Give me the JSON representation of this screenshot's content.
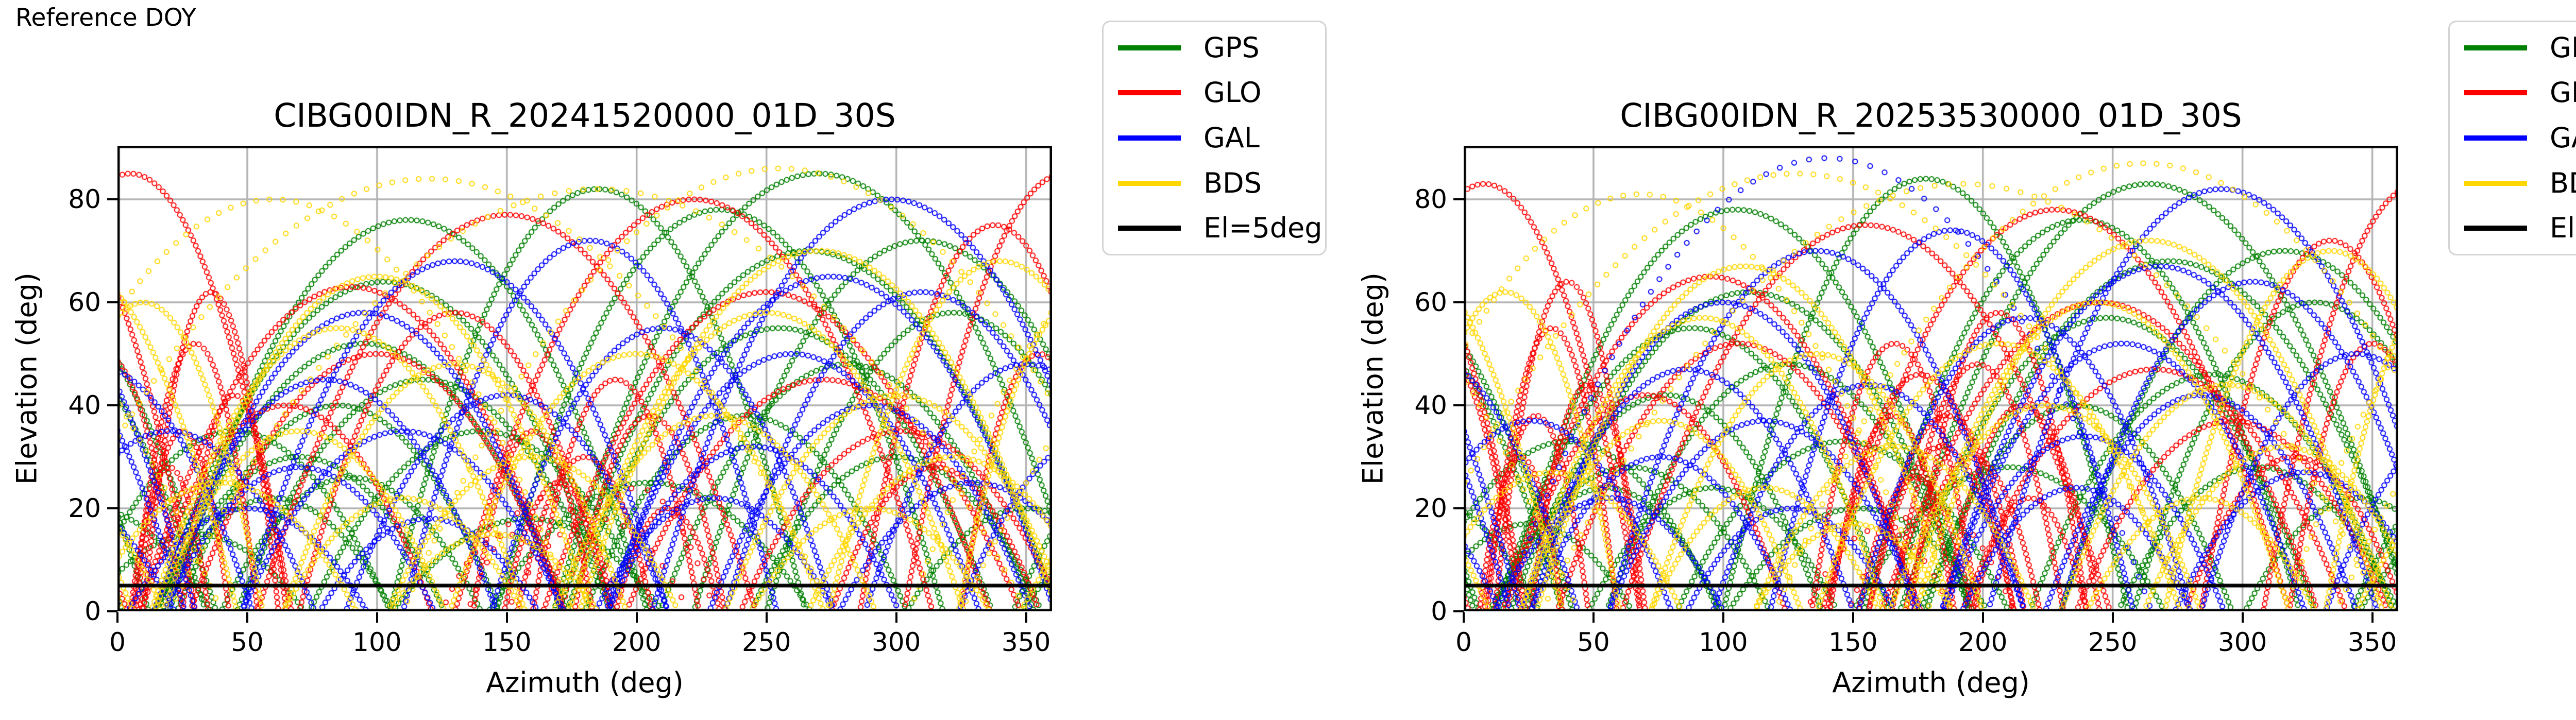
{
  "header": {
    "reference_label": "Reference DOY"
  },
  "figure": {
    "background": "#ffffff",
    "grid_color": "#b3b3b3",
    "frame_color": "#000000",
    "legend_border_color": "#d4d4d4"
  },
  "legend": {
    "entries": [
      {
        "label": "GPS",
        "color": "#008000"
      },
      {
        "label": "GLO",
        "color": "#ff0000"
      },
      {
        "label": "GAL",
        "color": "#0000ff"
      },
      {
        "label": "BDS",
        "color": "#ffd700"
      },
      {
        "label": "El=5deg",
        "color": "#000000"
      }
    ]
  },
  "chart_data": [
    {
      "type": "scatter",
      "title": "CIBG00IDN_R_20241520000_01D_30S",
      "xlabel": "Azimuth (deg)",
      "ylabel": "Elevation (deg)",
      "xlim": [
        0,
        360
      ],
      "ylim": [
        0,
        90.4
      ],
      "xticks": [
        0,
        50,
        100,
        150,
        200,
        250,
        300,
        350
      ],
      "yticks": [
        0,
        20,
        40,
        60,
        80
      ],
      "grid": true,
      "elevation_cutoff": {
        "label": "El=5deg",
        "value": 5,
        "color": "#000000"
      },
      "series": [
        {
          "name": "GPS",
          "color": "#008000",
          "arcs": [
            [
              95,
              78,
              52
            ],
            [
              103,
              88,
              64
            ],
            [
              85,
              62,
              40
            ],
            [
              70,
              56,
              30
            ],
            [
              118,
              72,
              45
            ],
            [
              60,
              46,
              22
            ],
            [
              112,
              92,
              76
            ],
            [
              140,
              66,
              35
            ],
            [
              158,
              52,
              18
            ],
            [
              30,
              42,
              15
            ],
            [
              205,
              62,
              25
            ],
            [
              232,
              86,
              78
            ],
            [
              255,
              82,
              55
            ],
            [
              266,
              96,
              70
            ],
            [
              281,
              72,
              48
            ],
            [
              242,
              62,
              38
            ],
            [
              300,
              56,
              30
            ],
            [
              322,
              72,
              58
            ],
            [
              350,
              46,
              20
            ],
            [
              270,
              102,
              85
            ],
            [
              45,
              60,
              35
            ],
            [
              185,
              80,
              82
            ],
            [
              90,
              50,
              26
            ],
            [
              310,
              88,
              72
            ]
          ]
        },
        {
          "name": "GLO",
          "color": "#ff0000",
          "arcs": [
            [
              25,
              18,
              35
            ],
            [
              30,
              24,
              52
            ],
            [
              20,
              15,
              28
            ],
            [
              36,
              26,
              62
            ],
            [
              45,
              20,
              42
            ],
            [
              180,
              26,
              30
            ],
            [
              192,
              32,
              45
            ],
            [
              170,
              21,
              25
            ],
            [
              205,
              29,
              38
            ],
            [
              212,
              20,
              20
            ],
            [
              160,
              23,
              35
            ],
            [
              90,
              82,
              63
            ],
            [
              100,
              72,
              50
            ],
            [
              250,
              86,
              62
            ],
            [
              272,
              76,
              45
            ],
            [
              302,
              62,
              35
            ],
            [
              338,
              52,
              75
            ],
            [
              5,
              62,
              85
            ],
            [
              222,
              92,
              80
            ],
            [
              150,
              96,
              77
            ],
            [
              65,
              56,
              40
            ],
            [
              355,
              30,
              50
            ],
            [
              315,
              40,
              28
            ],
            [
              165,
              30,
              22,
              30
            ],
            [
              185,
              35,
              18,
              34
            ],
            [
              150,
              25,
              15,
              30
            ],
            [
              200,
              30,
              24,
              32
            ],
            [
              130,
              60,
              58
            ]
          ]
        },
        {
          "name": "GAL",
          "color": "#0000ff",
          "arcs": [
            [
              80,
              66,
              45
            ],
            [
              95,
              76,
              58
            ],
            [
              110,
              62,
              35
            ],
            [
              70,
              52,
              28
            ],
            [
              130,
              82,
              68
            ],
            [
              50,
              46,
              20
            ],
            [
              260,
              72,
              50
            ],
            [
              275,
              86,
              65
            ],
            [
              290,
              62,
              40
            ],
            [
              245,
              56,
              32
            ],
            [
              310,
              76,
              62
            ],
            [
              330,
              52,
              25
            ],
            [
              182,
              72,
              72
            ],
            [
              210,
              66,
              55
            ],
            [
              150,
              62,
              42
            ],
            [
              20,
              56,
              35
            ],
            [
              350,
              62,
              48
            ],
            [
              230,
              46,
              22
            ],
            [
              120,
              42,
              18
            ],
            [
              298,
              92,
              80
            ]
          ]
        },
        {
          "name": "BDS",
          "color": "#ffd700",
          "arcs": [
            [
              120,
              155,
              84,
              26
            ],
            [
              255,
              145,
              86,
              26
            ],
            [
              185,
              165,
              82,
              28
            ],
            [
              60,
              115,
              80,
              26
            ],
            [
              85,
              72,
              55
            ],
            [
              100,
              82,
              65
            ],
            [
              70,
              56,
              35
            ],
            [
              130,
              66,
              48
            ],
            [
              250,
              76,
              58
            ],
            [
              270,
              92,
              70
            ],
            [
              300,
              66,
              42
            ],
            [
              322,
              56,
              30
            ],
            [
              230,
              62,
              38
            ],
            [
              40,
              52,
              25
            ],
            [
              200,
              72,
              50
            ],
            [
              160,
              56,
              30
            ],
            [
              10,
              46,
              60
            ],
            [
              340,
              66,
              68
            ],
            [
              110,
              46,
              22
            ],
            [
              290,
              46,
              20
            ],
            [
              145,
              40,
              15
            ]
          ]
        }
      ]
    },
    {
      "type": "scatter",
      "title": "CIBG00IDN_R_20253530000_01D_30S",
      "xlabel": "Azimuth (deg)",
      "ylabel": "Elevation (deg)",
      "xlim": [
        0,
        360
      ],
      "ylim": [
        0,
        90.4
      ],
      "xticks": [
        0,
        50,
        100,
        150,
        200,
        250,
        300,
        350
      ],
      "yticks": [
        0,
        20,
        40,
        60,
        80
      ],
      "grid": true,
      "elevation_cutoff": {
        "label": "El=5deg",
        "value": 5,
        "color": "#000000"
      },
      "series": [
        {
          "name": "GPS",
          "color": "#008000",
          "arcs": [
            [
              88,
              76,
              55
            ],
            [
              110,
              86,
              62
            ],
            [
              78,
              60,
              42
            ],
            [
              64,
              54,
              28
            ],
            [
              125,
              70,
              48
            ],
            [
              55,
              44,
              24
            ],
            [
              105,
              90,
              78
            ],
            [
              146,
              64,
              33
            ],
            [
              152,
              50,
              20
            ],
            [
              25,
              40,
              17
            ],
            [
              210,
              60,
              28
            ],
            [
              238,
              84,
              76
            ],
            [
              248,
              80,
              57
            ],
            [
              272,
              94,
              68
            ],
            [
              288,
              70,
              46
            ],
            [
              236,
              60,
              40
            ],
            [
              306,
              54,
              28
            ],
            [
              328,
              70,
              60
            ],
            [
              345,
              44,
              22
            ],
            [
              264,
              100,
              83
            ],
            [
              40,
              58,
              33
            ],
            [
              178,
              78,
              84
            ],
            [
              96,
              48,
              24
            ],
            [
              316,
              86,
              70
            ]
          ]
        },
        {
          "name": "GLO",
          "color": "#ff0000",
          "arcs": [
            [
              28,
              20,
              38
            ],
            [
              34,
              25,
              55
            ],
            [
              22,
              16,
              30
            ],
            [
              40,
              28,
              64
            ],
            [
              48,
              22,
              44
            ],
            [
              184,
              28,
              32
            ],
            [
              198,
              33,
              48
            ],
            [
              174,
              22,
              26
            ],
            [
              215,
              30,
              40
            ],
            [
              218,
              22,
              22
            ],
            [
              165,
              24,
              38
            ],
            [
              95,
              80,
              65
            ],
            [
              106,
              70,
              52
            ],
            [
              245,
              84,
              60
            ],
            [
              266,
              74,
              47
            ],
            [
              296,
              60,
              37
            ],
            [
              334,
              50,
              72
            ],
            [
              8,
              60,
              83
            ],
            [
              228,
              90,
              78
            ],
            [
              155,
              94,
              75
            ],
            [
              70,
              54,
              42
            ],
            [
              350,
              32,
              52
            ],
            [
              320,
              42,
              30
            ],
            [
              176,
              36,
              46
            ],
            [
              186,
              30,
              38
            ],
            [
              166,
              32,
              52
            ],
            [
              196,
              26,
              30
            ],
            [
              206,
              34,
              58
            ],
            [
              180,
              32,
              20,
              30
            ],
            [
              160,
              28,
              16,
              32
            ]
          ]
        },
        {
          "name": "GAL",
          "color": "#0000ff",
          "arcs": [
            [
              86,
              64,
              47
            ],
            [
              100,
              74,
              60
            ],
            [
              116,
              60,
              37
            ],
            [
              76,
              50,
              30
            ],
            [
              136,
              80,
              70
            ],
            [
              56,
              44,
              22
            ],
            [
              254,
              70,
              52
            ],
            [
              268,
              84,
              67
            ],
            [
              284,
              60,
              42
            ],
            [
              239,
              54,
              34
            ],
            [
              304,
              74,
              64
            ],
            [
              324,
              50,
              27
            ],
            [
              188,
              70,
              74
            ],
            [
              216,
              64,
              57
            ],
            [
              156,
              60,
              44
            ],
            [
              26,
              54,
              37
            ],
            [
              344,
              60,
              50
            ],
            [
              236,
              44,
              24
            ],
            [
              126,
              40,
              20
            ],
            [
              292,
              90,
              82
            ],
            [
              140,
              125,
              88,
              30
            ]
          ]
        },
        {
          "name": "BDS",
          "color": "#ffd700",
          "arcs": [
            [
              128,
              152,
              85,
              26
            ],
            [
              262,
              142,
              87,
              26
            ],
            [
              192,
              162,
              83,
              28
            ],
            [
              68,
              112,
              81,
              26
            ],
            [
              92,
              70,
              57
            ],
            [
              108,
              80,
              67
            ],
            [
              76,
              54,
              37
            ],
            [
              136,
              64,
              50
            ],
            [
              244,
              74,
              60
            ],
            [
              264,
              90,
              72
            ],
            [
              294,
              64,
              44
            ],
            [
              316,
              54,
              32
            ],
            [
              224,
              60,
              40
            ],
            [
              34,
              50,
              27
            ],
            [
              206,
              70,
              52
            ],
            [
              166,
              54,
              32
            ],
            [
              16,
              44,
              62
            ],
            [
              334,
              64,
              70
            ],
            [
              116,
              44,
              24
            ],
            [
              284,
              44,
              22
            ],
            [
              150,
              38,
              17
            ]
          ]
        }
      ]
    }
  ]
}
